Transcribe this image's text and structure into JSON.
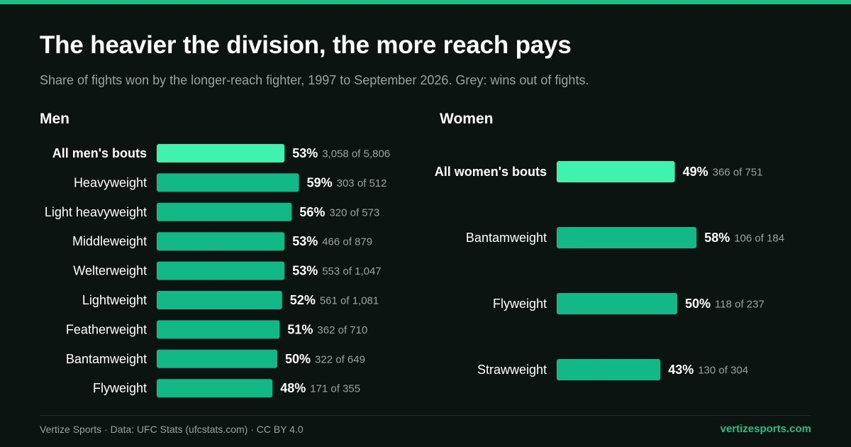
{
  "title": "The heavier the division, the more reach pays",
  "subtitle": "Share of fights won by the longer-reach fighter, 1997 to September 2026. Grey: wins out of fights.",
  "colors": {
    "accent": "#1fbf86",
    "bar": "#12b886",
    "bar_highlight": "#3ff2ae",
    "background": "#0c1412",
    "muted_text": "#9aa39f"
  },
  "chart_data": [
    {
      "type": "bar",
      "orientation": "horizontal",
      "title": "Men",
      "xlim": [
        0,
        100
      ],
      "categories": [
        "All men's bouts",
        "Heavyweight",
        "Light heavyweight",
        "Middleweight",
        "Welterweight",
        "Lightweight",
        "Featherweight",
        "Bantamweight",
        "Flyweight"
      ],
      "values": [
        53,
        59,
        56,
        53,
        53,
        52,
        51,
        50,
        48
      ],
      "value_labels": [
        "53%",
        "59%",
        "56%",
        "53%",
        "53%",
        "52%",
        "51%",
        "50%",
        "48%"
      ],
      "count_labels": [
        "3,058 of 5,806",
        "303 of 512",
        "320 of 573",
        "466 of 879",
        "553 of 1,047",
        "561 of 1,081",
        "362 of 710",
        "322 of 649",
        "171 of 355"
      ],
      "highlight": [
        true,
        false,
        false,
        false,
        false,
        false,
        false,
        false,
        false
      ]
    },
    {
      "type": "bar",
      "orientation": "horizontal",
      "title": "Women",
      "xlim": [
        0,
        100
      ],
      "categories": [
        "All women's bouts",
        "Bantamweight",
        "Flyweight",
        "Strawweight"
      ],
      "values": [
        49,
        58,
        50,
        43
      ],
      "value_labels": [
        "49%",
        "58%",
        "50%",
        "43%"
      ],
      "count_labels": [
        "366 of 751",
        "106 of 184",
        "118 of 237",
        "130 of 304"
      ],
      "highlight": [
        true,
        false,
        false,
        false
      ]
    }
  ],
  "footer": {
    "credit": "Vertize Sports · Data: UFC Stats (ufcstats.com) · CC BY 4.0",
    "site": "vertizesports.com"
  }
}
